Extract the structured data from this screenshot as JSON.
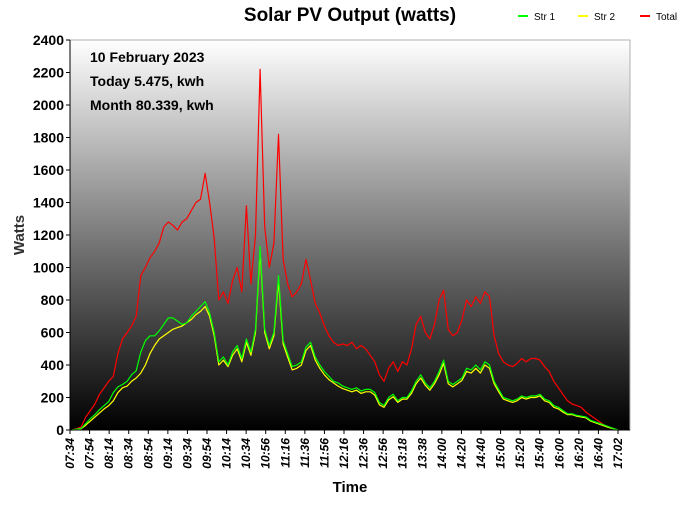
{
  "chart_data": {
    "type": "line",
    "title": "Solar PV Output (watts)",
    "xlabel": "Time",
    "ylabel": "Watts",
    "ylim": [
      0,
      2400
    ],
    "yticks": [
      0,
      200,
      400,
      600,
      800,
      1000,
      1200,
      1400,
      1600,
      1800,
      2000,
      2200,
      2400
    ],
    "x_tick_labels": [
      "07:34",
      "07:54",
      "08:14",
      "08:34",
      "08:54",
      "09:14",
      "09:34",
      "09:54",
      "10:14",
      "10:34",
      "10:56",
      "11:16",
      "11:36",
      "11:56",
      "12:16",
      "12:36",
      "12:56",
      "13:18",
      "13:38",
      "14:00",
      "14:20",
      "14:40",
      "15:00",
      "15:20",
      "15:40",
      "16:00",
      "16:20",
      "16:40",
      "17:02"
    ],
    "legend_position": "top-right",
    "annotations": [
      "10 February 2023",
      "Today 5.475, kwh",
      "Month 80.339, kwh"
    ],
    "series": [
      {
        "name": "Str 1",
        "color": "#00ff00",
        "values": [
          0,
          5,
          10,
          40,
          70,
          95,
          125,
          150,
          175,
          230,
          265,
          280,
          300,
          340,
          365,
          480,
          550,
          580,
          580,
          610,
          650,
          690,
          690,
          670,
          650,
          660,
          700,
          730,
          760,
          790,
          720,
          600,
          420,
          450,
          400,
          480,
          520,
          440,
          560,
          480,
          620,
          1130,
          620,
          520,
          600,
          950,
          550,
          470,
          390,
          400,
          420,
          510,
          540,
          450,
          400,
          360,
          330,
          300,
          290,
          270,
          260,
          250,
          260,
          240,
          250,
          250,
          230,
          170,
          150,
          200,
          220,
          180,
          200,
          200,
          240,
          300,
          340,
          290,
          260,
          300,
          360,
          430,
          300,
          280,
          300,
          320,
          380,
          370,
          400,
          370,
          420,
          400,
          300,
          250,
          200,
          190,
          180,
          190,
          210,
          200,
          210,
          210,
          220,
          190,
          180,
          150,
          140,
          120,
          100,
          100,
          90,
          85,
          80,
          60,
          50,
          40,
          30,
          20,
          10,
          0
        ]
      },
      {
        "name": "Str 2",
        "color": "#ffff00",
        "values": [
          0,
          3,
          8,
          30,
          55,
          80,
          105,
          130,
          150,
          180,
          230,
          260,
          270,
          300,
          320,
          350,
          400,
          470,
          520,
          560,
          580,
          600,
          620,
          630,
          640,
          660,
          680,
          710,
          730,
          760,
          700,
          580,
          400,
          430,
          390,
          460,
          500,
          420,
          540,
          460,
          600,
          1100,
          600,
          500,
          580,
          920,
          530,
          450,
          370,
          380,
          400,
          490,
          520,
          430,
          380,
          340,
          310,
          290,
          270,
          255,
          245,
          235,
          245,
          225,
          235,
          235,
          215,
          155,
          140,
          185,
          205,
          170,
          190,
          190,
          225,
          285,
          320,
          275,
          245,
          285,
          340,
          410,
          285,
          265,
          285,
          305,
          360,
          350,
          380,
          350,
          400,
          380,
          285,
          235,
          190,
          180,
          170,
          180,
          200,
          190,
          200,
          200,
          210,
          180,
          170,
          140,
          130,
          110,
          95,
          95,
          85,
          80,
          75,
          55,
          45,
          35,
          25,
          15,
          8,
          0
        ]
      },
      {
        "name": "Total",
        "color": "#ff0000",
        "values": [
          0,
          8,
          20,
          80,
          120,
          160,
          220,
          260,
          300,
          330,
          470,
          560,
          600,
          640,
          700,
          950,
          1000,
          1060,
          1100,
          1150,
          1250,
          1280,
          1260,
          1230,
          1280,
          1300,
          1350,
          1400,
          1420,
          1580,
          1400,
          1180,
          800,
          850,
          780,
          920,
          1000,
          850,
          1380,
          900,
          1200,
          2220,
          1250,
          1000,
          1150,
          1820,
          1050,
          900,
          820,
          850,
          900,
          1050,
          920,
          780,
          720,
          640,
          580,
          540,
          520,
          530,
          520,
          540,
          500,
          520,
          500,
          460,
          420,
          340,
          300,
          380,
          420,
          360,
          420,
          400,
          500,
          650,
          700,
          600,
          560,
          650,
          800,
          860,
          620,
          580,
          600,
          680,
          800,
          760,
          820,
          780,
          850,
          820,
          580,
          470,
          420,
          400,
          390,
          410,
          440,
          420,
          440,
          440,
          430,
          390,
          360,
          300,
          260,
          220,
          180,
          160,
          150,
          140,
          110,
          90,
          70,
          50,
          30,
          20,
          10,
          0
        ]
      }
    ]
  }
}
